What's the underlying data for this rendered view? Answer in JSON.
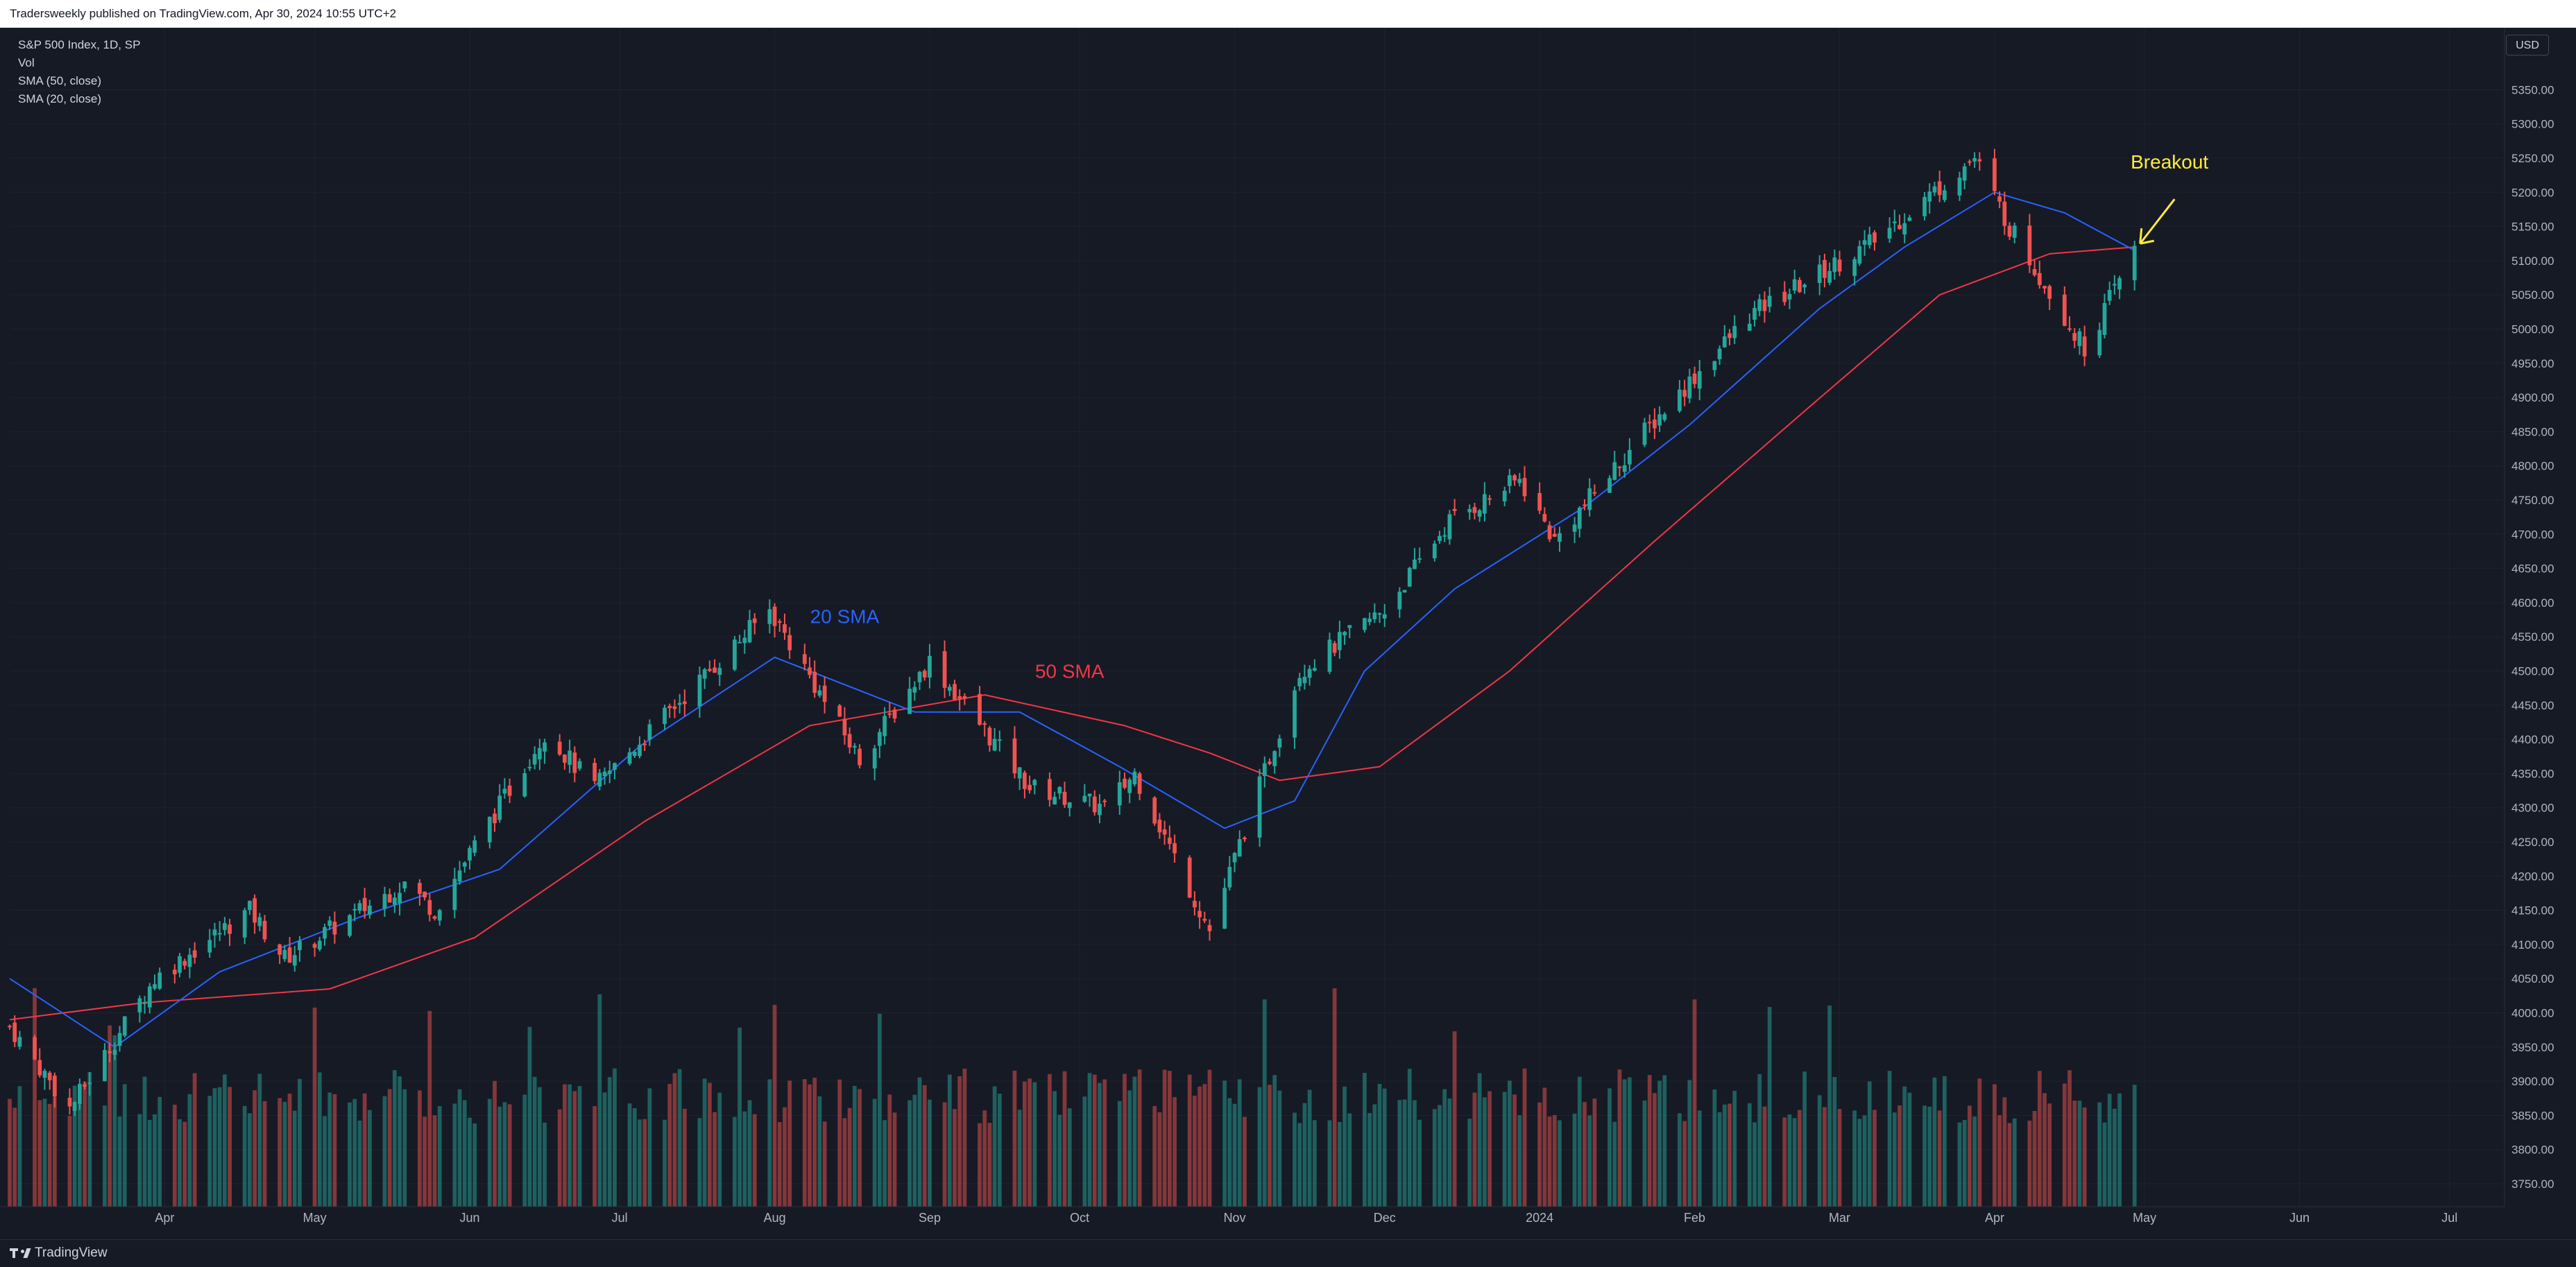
{
  "header": {
    "published": "Tradersweekly published on TradingView.com, Apr 30, 2024 10:55 UTC+2"
  },
  "legend": [
    "S&P 500 Index, 1D, SP",
    "Vol",
    "SMA (50, close)",
    "SMA (20, close)"
  ],
  "currency": "USD",
  "footer": {
    "brand": "TradingView"
  },
  "colors": {
    "up": "#26a69a",
    "down": "#ef5350",
    "sma20": "#2962ff",
    "sma50": "#f23645",
    "annotation": "#ffeb3b",
    "background": "#161a25"
  },
  "chart_data": {
    "type": "candlestick",
    "title": "S&P 500 Index, 1D, SP",
    "x_axis": {
      "type": "date",
      "range": [
        "2023-03-01",
        "2024-07-12"
      ],
      "tick_labels": [
        "Apr",
        "May",
        "Jun",
        "Jul",
        "Aug",
        "Sep",
        "Oct",
        "Nov",
        "Dec",
        "2024",
        "Feb",
        "Mar",
        "Apr",
        "May",
        "Jun",
        "Jul"
      ]
    },
    "y_axis": {
      "side": "right",
      "range": [
        3710,
        5390
      ],
      "ticks": [
        3750,
        3800,
        3850,
        3900,
        3950,
        4000,
        4050,
        4100,
        4150,
        4200,
        4250,
        4300,
        4350,
        4400,
        4450,
        4500,
        4550,
        4600,
        4650,
        4700,
        4750,
        4800,
        4850,
        4900,
        4950,
        5000,
        5050,
        5100,
        5150,
        5200,
        5250,
        5300,
        5350
      ]
    },
    "price_close_anchors": [
      [
        "2023-03-01",
        3980
      ],
      [
        "2023-03-13",
        3860
      ],
      [
        "2023-03-30",
        4050
      ],
      [
        "2023-04-18",
        4150
      ],
      [
        "2023-04-25",
        4080
      ],
      [
        "2023-05-19",
        4190
      ],
      [
        "2023-05-25",
        4150
      ],
      [
        "2023-06-16",
        4410
      ],
      [
        "2023-06-26",
        4330
      ],
      [
        "2023-07-31",
        4590
      ],
      [
        "2023-08-18",
        4370
      ],
      [
        "2023-09-01",
        4515
      ],
      [
        "2023-09-21",
        4330
      ],
      [
        "2023-10-06",
        4300
      ],
      [
        "2023-10-12",
        4350
      ],
      [
        "2023-10-27",
        4120
      ],
      [
        "2023-11-14",
        4500
      ],
      [
        "2023-12-01",
        4590
      ],
      [
        "2023-12-14",
        4720
      ],
      [
        "2023-12-28",
        4780
      ],
      [
        "2024-01-04",
        4690
      ],
      [
        "2024-01-22",
        4850
      ],
      [
        "2024-02-12",
        5020
      ],
      [
        "2024-03-08",
        5130
      ],
      [
        "2024-03-28",
        5250
      ],
      [
        "2024-04-04",
        5150
      ],
      [
        "2024-04-19",
        4970
      ],
      [
        "2024-04-29",
        5115
      ]
    ],
    "sma20": [
      [
        "2023-03-01",
        4050
      ],
      [
        "2023-03-22",
        3950
      ],
      [
        "2023-04-12",
        4060
      ],
      [
        "2023-05-10",
        4140
      ],
      [
        "2023-06-07",
        4210
      ],
      [
        "2023-07-05",
        4390
      ],
      [
        "2023-08-01",
        4520
      ],
      [
        "2023-08-29",
        4440
      ],
      [
        "2023-09-19",
        4440
      ],
      [
        "2023-10-09",
        4360
      ],
      [
        "2023-10-30",
        4270
      ],
      [
        "2023-11-13",
        4310
      ],
      [
        "2023-11-27",
        4500
      ],
      [
        "2023-12-15",
        4620
      ],
      [
        "2024-01-10",
        4740
      ],
      [
        "2024-01-31",
        4860
      ],
      [
        "2024-02-26",
        5030
      ],
      [
        "2024-03-14",
        5120
      ],
      [
        "2024-04-01",
        5200
      ],
      [
        "2024-04-15",
        5170
      ],
      [
        "2024-04-29",
        5115
      ]
    ],
    "sma50": [
      [
        "2023-03-01",
        3990
      ],
      [
        "2023-03-28",
        4015
      ],
      [
        "2023-05-04",
        4035
      ],
      [
        "2023-06-02",
        4110
      ],
      [
        "2023-07-06",
        4280
      ],
      [
        "2023-08-08",
        4420
      ],
      [
        "2023-09-12",
        4465
      ],
      [
        "2023-10-10",
        4420
      ],
      [
        "2023-10-27",
        4380
      ],
      [
        "2023-11-10",
        4340
      ],
      [
        "2023-11-30",
        4360
      ],
      [
        "2023-12-26",
        4500
      ],
      [
        "2024-01-24",
        4690
      ],
      [
        "2024-02-23",
        4880
      ],
      [
        "2024-03-21",
        5050
      ],
      [
        "2024-04-12",
        5110
      ],
      [
        "2024-04-29",
        5120
      ]
    ],
    "series": [
      {
        "name": "S&P 500 Index, 1D, SP"
      },
      {
        "name": "SMA (50, close)"
      },
      {
        "name": "SMA (20, close)"
      }
    ],
    "annotations": [
      {
        "text": "20 SMA",
        "date": "2023-08-15",
        "price": 4570
      },
      {
        "text": "50 SMA",
        "date": "2023-09-29",
        "price": 4490
      },
      {
        "text": "Breakout",
        "date": "2024-05-06",
        "price": 5235
      }
    ]
  }
}
